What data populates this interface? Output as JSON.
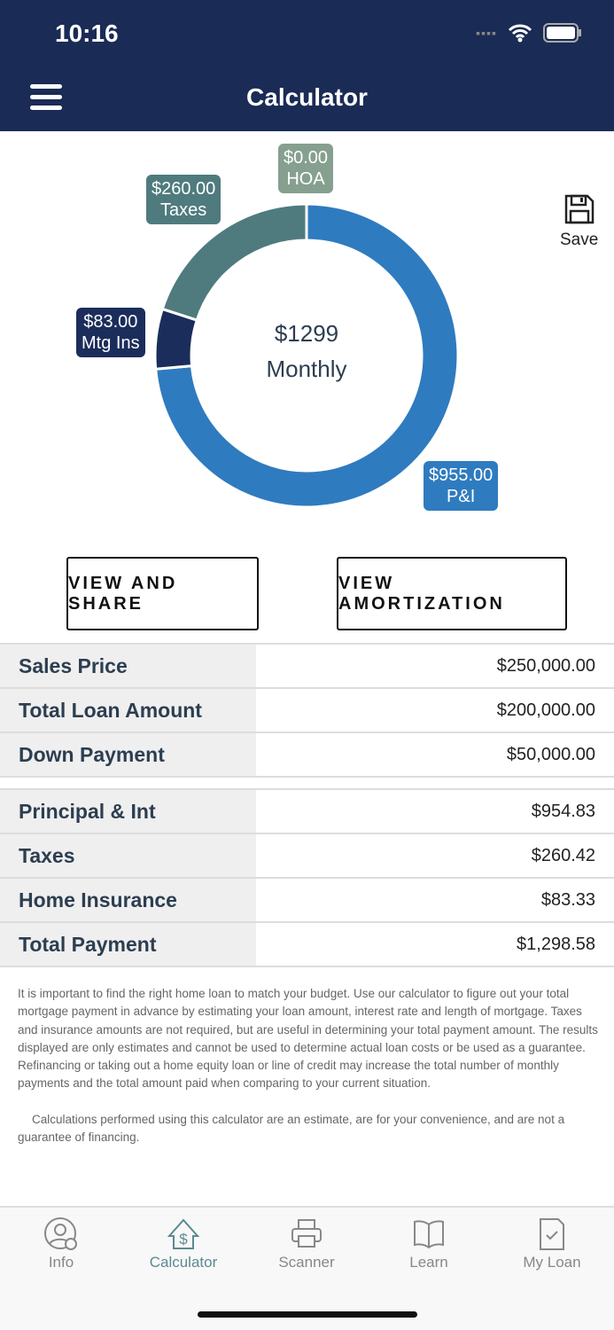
{
  "status": {
    "time": "10:16"
  },
  "header": {
    "title": "Calculator"
  },
  "chart_data": {
    "type": "pie",
    "variant": "donut",
    "center_value": "$1299",
    "center_label": "Monthly",
    "slices": [
      {
        "name": "P&I",
        "label": "$955.00",
        "value": 955,
        "color": "#2f7bbf"
      },
      {
        "name": "Mtg Ins",
        "label": "$83.00",
        "value": 83,
        "color": "#1b2d5a"
      },
      {
        "name": "Taxes",
        "label": "$260.00",
        "value": 260,
        "color": "#4f7b7e"
      },
      {
        "name": "HOA",
        "label": "$0.00",
        "value": 0,
        "color": "#86a08f"
      }
    ]
  },
  "save_label": "Save",
  "buttons": {
    "share": "VIEW AND SHARE",
    "amort": "VIEW AMORTIZATION"
  },
  "loan": [
    {
      "k": "Sales Price",
      "v": "$250,000.00"
    },
    {
      "k": "Total Loan Amount",
      "v": "$200,000.00"
    },
    {
      "k": "Down Payment",
      "v": "$50,000.00"
    }
  ],
  "payment": [
    {
      "k": "Principal & Int",
      "v": "$954.83"
    },
    {
      "k": "Taxes",
      "v": "$260.42"
    },
    {
      "k": "Home Insurance",
      "v": "$83.33"
    },
    {
      "k": "Total Payment",
      "v": "$1,298.58"
    }
  ],
  "disclaimer": [
    "It is important to find the right home loan to match your budget. Use our calculator to figure out your total mortgage payment in advance by estimating your loan amount, interest rate and length of mortgage. Taxes and insurance amounts are not required, but are useful in determining your total payment amount. The results displayed are only estimates and cannot be used to determine actual loan costs or be used as a guarantee. Refinancing or taking out a home equity loan or line of credit may increase the total number of monthly payments and the total amount paid when comparing to your current situation.",
    "Calculations performed using this calculator are an estimate, are for your convenience, and are not a guarantee of financing."
  ],
  "tabs": [
    {
      "label": "Info",
      "icon": "person-info-icon"
    },
    {
      "label": "Calculator",
      "icon": "house-dollar-icon",
      "active": true
    },
    {
      "label": "Scanner",
      "icon": "printer-icon"
    },
    {
      "label": "Learn",
      "icon": "book-icon"
    },
    {
      "label": "My Loan",
      "icon": "document-check-icon"
    }
  ],
  "colors": {
    "navy": "#1a2b55",
    "active_tab": "#5b8a90"
  }
}
